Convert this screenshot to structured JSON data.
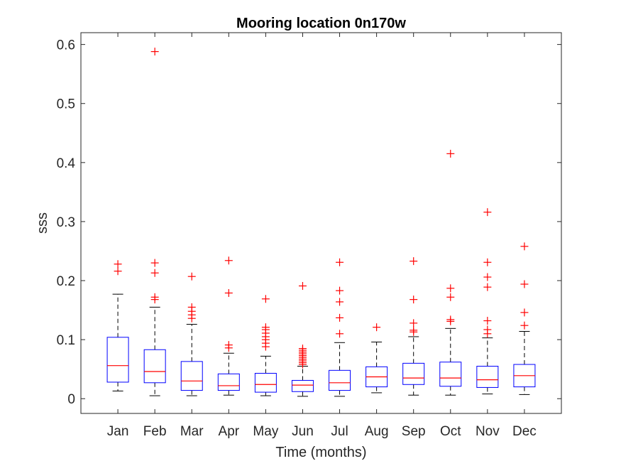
{
  "chart_data": {
    "type": "box",
    "title": "Mooring location 0n170w",
    "xlabel": "Time (months)",
    "ylabel": "sss",
    "categories": [
      "Jan",
      "Feb",
      "Mar",
      "Apr",
      "May",
      "Jun",
      "Jul",
      "Aug",
      "Sep",
      "Oct",
      "Nov",
      "Dec"
    ],
    "ylim": [
      -0.025,
      0.62
    ],
    "yticks": [
      0,
      0.1,
      0.2,
      0.3,
      0.4,
      0.5,
      0.6
    ],
    "ytick_labels": [
      "0",
      "0.1",
      "0.2",
      "0.3",
      "0.4",
      "0.5",
      "0.6"
    ],
    "grid": false,
    "colors": {
      "box": "#0000ff",
      "median": "#ff0000",
      "whisker": "#000000",
      "outlier": "#ff0000",
      "axis": "#262626"
    },
    "boxes": [
      {
        "label": "Jan",
        "whisker_low": 0.013,
        "q1": 0.028,
        "median": 0.056,
        "q3": 0.104,
        "whisker_high": 0.177,
        "outliers": [
          0.216,
          0.228
        ]
      },
      {
        "label": "Feb",
        "whisker_low": 0.005,
        "q1": 0.027,
        "median": 0.046,
        "q3": 0.083,
        "whisker_high": 0.155,
        "outliers": [
          0.168,
          0.172,
          0.213,
          0.23,
          0.588
        ]
      },
      {
        "label": "Mar",
        "whisker_low": 0.005,
        "q1": 0.014,
        "median": 0.03,
        "q3": 0.063,
        "whisker_high": 0.126,
        "outliers": [
          0.136,
          0.142,
          0.148,
          0.155,
          0.207
        ]
      },
      {
        "label": "Apr",
        "whisker_low": 0.006,
        "q1": 0.014,
        "median": 0.022,
        "q3": 0.042,
        "whisker_high": 0.077,
        "outliers": [
          0.086,
          0.091,
          0.179,
          0.234
        ]
      },
      {
        "label": "May",
        "whisker_low": 0.005,
        "q1": 0.011,
        "median": 0.024,
        "q3": 0.043,
        "whisker_high": 0.072,
        "outliers": [
          0.088,
          0.094,
          0.1,
          0.105,
          0.111,
          0.117,
          0.121,
          0.169
        ]
      },
      {
        "label": "Jun",
        "whisker_low": 0.004,
        "q1": 0.012,
        "median": 0.023,
        "q3": 0.031,
        "whisker_high": 0.055,
        "outliers": [
          0.058,
          0.061,
          0.064,
          0.067,
          0.07,
          0.073,
          0.076,
          0.079,
          0.082,
          0.085,
          0.191
        ]
      },
      {
        "label": "Jul",
        "whisker_low": 0.004,
        "q1": 0.014,
        "median": 0.027,
        "q3": 0.048,
        "whisker_high": 0.095,
        "outliers": [
          0.11,
          0.137,
          0.164,
          0.183,
          0.231
        ]
      },
      {
        "label": "Aug",
        "whisker_low": 0.01,
        "q1": 0.02,
        "median": 0.037,
        "q3": 0.054,
        "whisker_high": 0.096,
        "outliers": [
          0.121
        ]
      },
      {
        "label": "Sep",
        "whisker_low": 0.006,
        "q1": 0.024,
        "median": 0.035,
        "q3": 0.06,
        "whisker_high": 0.105,
        "outliers": [
          0.113,
          0.116,
          0.128,
          0.168,
          0.233
        ]
      },
      {
        "label": "Oct",
        "whisker_low": 0.006,
        "q1": 0.021,
        "median": 0.035,
        "q3": 0.062,
        "whisker_high": 0.119,
        "outliers": [
          0.131,
          0.134,
          0.172,
          0.187,
          0.415
        ]
      },
      {
        "label": "Nov",
        "whisker_low": 0.008,
        "q1": 0.019,
        "median": 0.032,
        "q3": 0.055,
        "whisker_high": 0.103,
        "outliers": [
          0.11,
          0.117,
          0.132,
          0.189,
          0.206,
          0.231,
          0.316
        ]
      },
      {
        "label": "Dec",
        "whisker_low": 0.007,
        "q1": 0.02,
        "median": 0.039,
        "q3": 0.058,
        "whisker_high": 0.114,
        "outliers": [
          0.124,
          0.146,
          0.194,
          0.258
        ]
      }
    ]
  }
}
